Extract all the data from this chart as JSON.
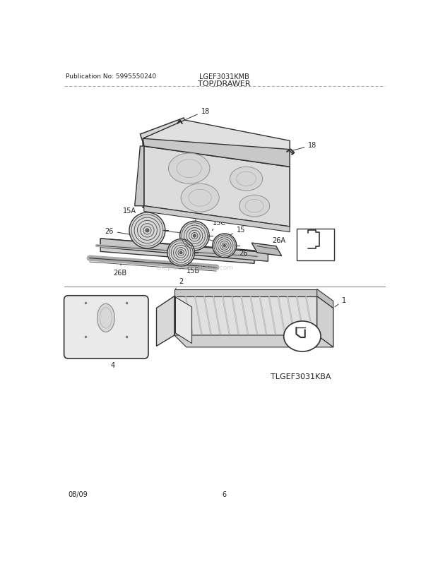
{
  "title_center": "TOP/DRAWER",
  "pub_no": "Publication No: 5995550240",
  "model": "LGEF3031KMB",
  "ref_model": "TLGEF3031KBA",
  "date": "08/09",
  "page": "6",
  "bg_color": "#ffffff",
  "line_color": "#333333",
  "light_gray": "#e0e0e0",
  "mid_gray": "#cccccc",
  "dark_gray": "#888888"
}
